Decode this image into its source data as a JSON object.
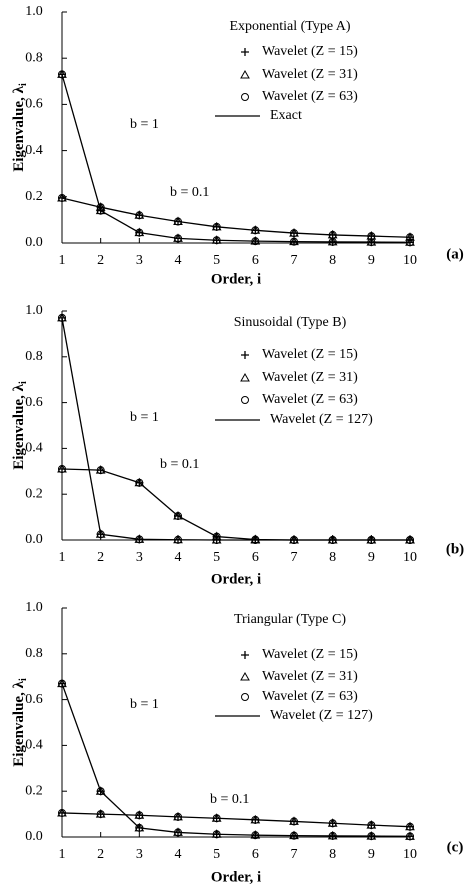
{
  "chart_data": [
    {
      "type": "line",
      "title": "Exponential (Type A)",
      "panel_label": "(a)",
      "x_label": "Order, i",
      "y_label": "Eigenvalue, λ",
      "y_label_subscript": "i",
      "x": [
        1,
        2,
        3,
        4,
        5,
        6,
        7,
        8,
        9,
        10
      ],
      "xlim": [
        1,
        10
      ],
      "xticks": [
        1,
        2,
        3,
        4,
        5,
        6,
        7,
        8,
        9,
        10
      ],
      "ylim": [
        0,
        1
      ],
      "yticks": [
        {
          "value": 0,
          "label": "0.0"
        },
        0.2,
        0.4,
        0.6,
        0.8,
        {
          "value": 1,
          "label": "1.0"
        }
      ],
      "curve_labels": [
        "b = 1",
        "b = 0.1"
      ],
      "series": [
        {
          "name": "Wavelet (Z = 15)",
          "marker": "plus",
          "color": "#000",
          "values": [
            [
              0.73,
              0.14,
              0.045,
              0.02,
              0.012,
              0.008,
              0.006,
              0.005,
              0.004,
              0.003
            ],
            [
              0.195,
              0.155,
              0.12,
              0.093,
              0.07,
              0.055,
              0.043,
              0.035,
              0.03,
              0.025
            ]
          ]
        },
        {
          "name": "Wavelet (Z = 31)",
          "marker": "triangle",
          "color": "#000",
          "values": [
            [
              0.73,
              0.14,
              0.045,
              0.02,
              0.012,
              0.008,
              0.006,
              0.005,
              0.004,
              0.003
            ],
            [
              0.195,
              0.155,
              0.12,
              0.093,
              0.07,
              0.055,
              0.043,
              0.035,
              0.03,
              0.025
            ]
          ]
        },
        {
          "name": "Wavelet (Z = 63)",
          "marker": "circle",
          "color": "#000",
          "values": [
            [
              0.73,
              0.14,
              0.045,
              0.02,
              0.012,
              0.008,
              0.006,
              0.005,
              0.004,
              0.003
            ],
            [
              0.195,
              0.155,
              0.12,
              0.093,
              0.07,
              0.055,
              0.043,
              0.035,
              0.03,
              0.025
            ]
          ]
        },
        {
          "name": "Exact",
          "marker": "line",
          "color": "#000",
          "values": [
            [
              0.73,
              0.14,
              0.045,
              0.02,
              0.012,
              0.008,
              0.006,
              0.005,
              0.004,
              0.003
            ],
            [
              0.195,
              0.155,
              0.12,
              0.093,
              0.07,
              0.055,
              0.043,
              0.035,
              0.03,
              0.025
            ]
          ]
        }
      ]
    },
    {
      "type": "line",
      "title": "Sinusoidal (Type B)",
      "panel_label": "(b)",
      "x_label": "Order, i",
      "y_label": "Eigenvalue, λ",
      "y_label_subscript": "i",
      "x": [
        1,
        2,
        3,
        4,
        5,
        6,
        7,
        8,
        9,
        10
      ],
      "xlim": [
        1,
        10
      ],
      "xticks": [
        1,
        2,
        3,
        4,
        5,
        6,
        7,
        8,
        9,
        10
      ],
      "ylim": [
        0,
        1
      ],
      "yticks": [
        {
          "value": 0,
          "label": "0.0"
        },
        0.2,
        0.4,
        0.6,
        0.8,
        {
          "value": 1,
          "label": "1.0"
        }
      ],
      "curve_labels": [
        "b = 1",
        "b = 0.1"
      ],
      "series": [
        {
          "name": "Wavelet (Z = 15)",
          "marker": "plus",
          "color": "#000",
          "values": [
            [
              0.97,
              0.025,
              0.003,
              0.001,
              0,
              0,
              0,
              0,
              0,
              0
            ],
            [
              0.31,
              0.305,
              0.25,
              0.105,
              0.015,
              0.002,
              0,
              0,
              0,
              0
            ]
          ]
        },
        {
          "name": "Wavelet (Z = 31)",
          "marker": "triangle",
          "color": "#000",
          "values": [
            [
              0.97,
              0.025,
              0.003,
              0.001,
              0,
              0,
              0,
              0,
              0,
              0
            ],
            [
              0.31,
              0.305,
              0.25,
              0.105,
              0.015,
              0.002,
              0,
              0,
              0,
              0
            ]
          ]
        },
        {
          "name": "Wavelet (Z = 63)",
          "marker": "circle",
          "color": "#000",
          "values": [
            [
              0.97,
              0.025,
              0.003,
              0.001,
              0,
              0,
              0,
              0,
              0,
              0
            ],
            [
              0.31,
              0.305,
              0.25,
              0.105,
              0.015,
              0.002,
              0,
              0,
              0,
              0
            ]
          ]
        },
        {
          "name": "Wavelet (Z = 127)",
          "marker": "line",
          "color": "#000",
          "values": [
            [
              0.97,
              0.025,
              0.003,
              0.001,
              0,
              0,
              0,
              0,
              0,
              0
            ],
            [
              0.31,
              0.305,
              0.25,
              0.105,
              0.015,
              0.002,
              0,
              0,
              0,
              0
            ]
          ]
        }
      ]
    },
    {
      "type": "line",
      "title": "Triangular (Type C)",
      "panel_label": "(c)",
      "x_label": "Order, i",
      "y_label": "Eigenvalue, λ",
      "y_label_subscript": "i",
      "x": [
        1,
        2,
        3,
        4,
        5,
        6,
        7,
        8,
        9,
        10
      ],
      "xlim": [
        1,
        10
      ],
      "xticks": [
        1,
        2,
        3,
        4,
        5,
        6,
        7,
        8,
        9,
        10
      ],
      "ylim": [
        0,
        1
      ],
      "yticks": [
        {
          "value": 0,
          "label": "0.0"
        },
        0.2,
        0.4,
        0.6,
        0.8,
        {
          "value": 1,
          "label": "1.0"
        }
      ],
      "curve_labels": [
        "b = 1",
        "b = 0.1"
      ],
      "series": [
        {
          "name": "Wavelet (Z = 15)",
          "marker": "plus",
          "color": "#000",
          "values": [
            [
              0.67,
              0.2,
              0.04,
              0.02,
              0.012,
              0.008,
              0.006,
              0.005,
              0.004,
              0.003
            ],
            [
              0.105,
              0.1,
              0.095,
              0.088,
              0.082,
              0.075,
              0.068,
              0.06,
              0.052,
              0.045
            ]
          ]
        },
        {
          "name": "Wavelet (Z = 31)",
          "marker": "triangle",
          "color": "#000",
          "values": [
            [
              0.67,
              0.2,
              0.04,
              0.02,
              0.012,
              0.008,
              0.006,
              0.005,
              0.004,
              0.003
            ],
            [
              0.105,
              0.1,
              0.095,
              0.088,
              0.082,
              0.075,
              0.068,
              0.06,
              0.052,
              0.045
            ]
          ]
        },
        {
          "name": "Wavelet (Z = 63)",
          "marker": "circle",
          "color": "#000",
          "values": [
            [
              0.67,
              0.2,
              0.04,
              0.02,
              0.012,
              0.008,
              0.006,
              0.005,
              0.004,
              0.003
            ],
            [
              0.105,
              0.1,
              0.095,
              0.088,
              0.082,
              0.075,
              0.068,
              0.06,
              0.052,
              0.045
            ]
          ]
        },
        {
          "name": "Wavelet (Z = 127)",
          "marker": "line",
          "color": "#000",
          "values": [
            [
              0.67,
              0.2,
              0.04,
              0.02,
              0.012,
              0.008,
              0.006,
              0.005,
              0.004,
              0.003
            ],
            [
              0.105,
              0.1,
              0.095,
              0.088,
              0.082,
              0.075,
              0.068,
              0.06,
              0.052,
              0.045
            ]
          ]
        }
      ]
    }
  ]
}
